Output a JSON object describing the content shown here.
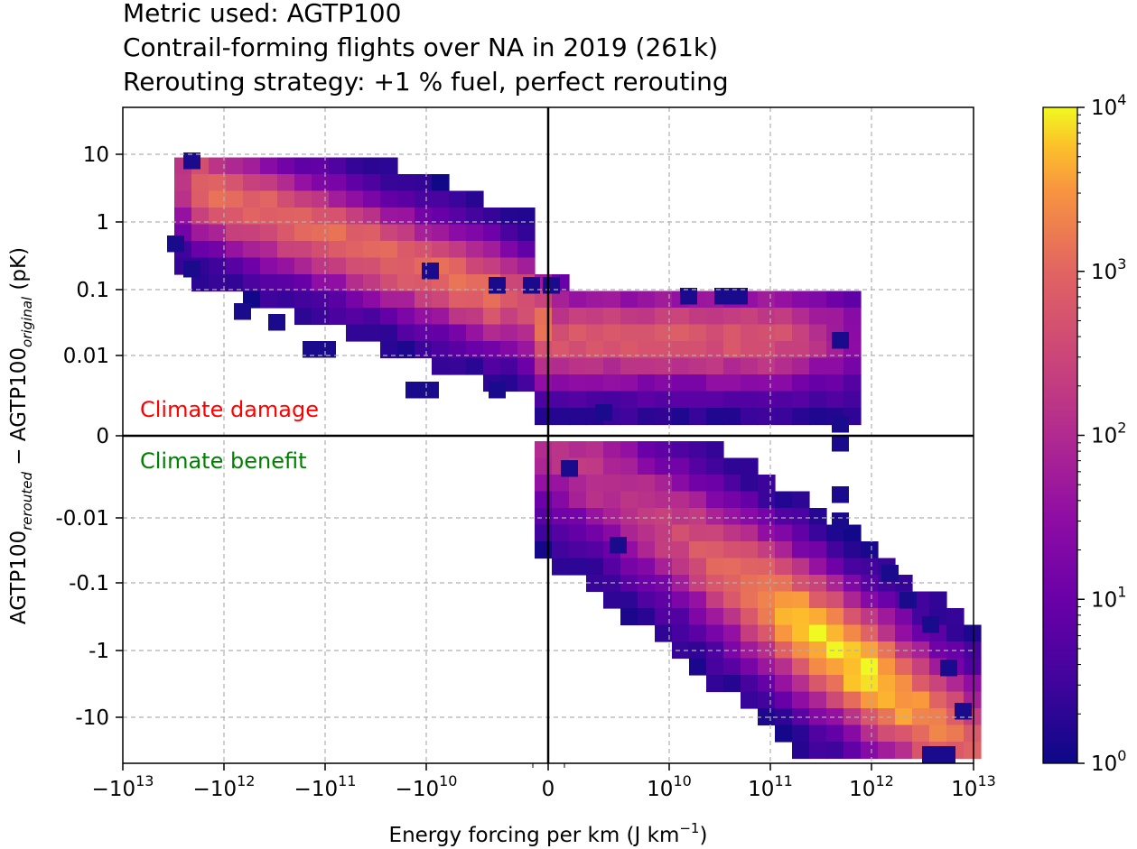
{
  "title_lines": [
    "Metric used: AGTP100",
    "Contrail-forming flights over NA in 2019 (261k)",
    "Rerouting strategy: +1 % fuel, perfect rerouting"
  ],
  "chart_data": {
    "type": "heatmap",
    "xlabel": "Energy forcing per km (J km",
    "xlabel_sup": "−1",
    "xlabel_end": ")",
    "ylabel_parts": [
      "AGTP100",
      "rerouted",
      " − AGTP100",
      "original",
      " (pK)"
    ],
    "x_scale": "symlog",
    "y_scale": "symlog",
    "x_tick_labels": [
      {
        "pos": -13,
        "base": "−10",
        "exp": "13"
      },
      {
        "pos": -12,
        "base": "−10",
        "exp": "12"
      },
      {
        "pos": -11,
        "base": "−10",
        "exp": "11"
      },
      {
        "pos": -10,
        "base": "−10",
        "exp": "10"
      },
      {
        "pos": 0,
        "base": "0",
        "exp": ""
      },
      {
        "pos": 10,
        "base": "10",
        "exp": "10"
      },
      {
        "pos": 11,
        "base": "10",
        "exp": "11"
      },
      {
        "pos": 12,
        "base": "10",
        "exp": "12"
      },
      {
        "pos": 13,
        "base": "10",
        "exp": "13"
      }
    ],
    "y_tick_labels": [
      {
        "pos": 10,
        "label": "10"
      },
      {
        "pos": 1,
        "label": "1"
      },
      {
        "pos": 0.1,
        "label": "0.1"
      },
      {
        "pos": 0.01,
        "label": "0.01"
      },
      {
        "pos": 0,
        "label": "0"
      },
      {
        "pos": -0.01,
        "label": "-0.01"
      },
      {
        "pos": -0.1,
        "label": "-0.1"
      },
      {
        "pos": -1,
        "label": "-1"
      },
      {
        "pos": -10,
        "label": "-10"
      }
    ],
    "annotations": [
      {
        "text": "Climate damage",
        "color": "#ff0000"
      },
      {
        "text": "Climate benefit",
        "color": "#008000"
      }
    ],
    "colorbar": {
      "scale": "log",
      "range": [
        1,
        10000
      ],
      "colormap": "plasma",
      "ticks": [
        {
          "base": "10",
          "exp": "0"
        },
        {
          "base": "10",
          "exp": "1"
        },
        {
          "base": "10",
          "exp": "2"
        },
        {
          "base": "10",
          "exp": "3"
        },
        {
          "base": "10",
          "exp": "4"
        }
      ]
    },
    "grid": true,
    "density_clusters": [
      {
        "name": "upper-left band",
        "x_range": [
          "-1e12.8",
          "-1e9"
        ],
        "y_range": [
          0.003,
          5
        ],
        "peak_count": 1200
      },
      {
        "name": "center spike near x=0",
        "x": 0,
        "y_range": [
          0.001,
          0.1
        ],
        "peak_count": 4000
      },
      {
        "name": "upper-right band",
        "x_range": [
          "1e9",
          "1e12"
        ],
        "y_range": [
          0.003,
          0.08
        ],
        "peak_count": 800
      },
      {
        "name": "lower-right band",
        "x_range": [
          "1e9",
          "1e13"
        ],
        "y_range": [
          -30,
          -0.0001
        ],
        "peak_count": 5000
      }
    ]
  }
}
